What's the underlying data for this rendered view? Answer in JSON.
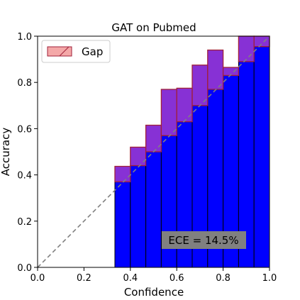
{
  "chart_data": {
    "type": "bar",
    "title": "GAT on Pubmed",
    "xlabel": "Confidence",
    "ylabel": "Accuracy",
    "xlim": [
      0.0,
      1.0
    ],
    "ylim": [
      0.0,
      1.0
    ],
    "xticks": [
      "0.0",
      "0.2",
      "0.4",
      "0.6",
      "0.8",
      "1.0"
    ],
    "yticks": [
      "0.0",
      "0.2",
      "0.4",
      "0.6",
      "0.8",
      "1.0"
    ],
    "bin_width": 0.0667,
    "bins": [
      {
        "x0": 0.3333,
        "accuracy": 0.37,
        "confidence": 0.437
      },
      {
        "x0": 0.4,
        "accuracy": 0.44,
        "confidence": 0.52
      },
      {
        "x0": 0.4667,
        "accuracy": 0.5,
        "confidence": 0.615
      },
      {
        "x0": 0.5333,
        "accuracy": 0.57,
        "confidence": 0.77
      },
      {
        "x0": 0.6,
        "accuracy": 0.63,
        "confidence": 0.775
      },
      {
        "x0": 0.6667,
        "accuracy": 0.7,
        "confidence": 0.875
      },
      {
        "x0": 0.7333,
        "accuracy": 0.77,
        "confidence": 0.94
      },
      {
        "x0": 0.8,
        "accuracy": 0.83,
        "confidence": 0.865
      },
      {
        "x0": 0.8667,
        "accuracy": 0.89,
        "confidence": 1.0
      },
      {
        "x0": 0.9333,
        "accuracy": 0.955,
        "confidence": 1.0
      }
    ],
    "legend": {
      "label": "Gap",
      "placement": "top-left"
    },
    "annotation": "ECE = 14.5%",
    "grid": false,
    "colors": {
      "bar": "#0000ff",
      "gap_fill": "#7a1bd0",
      "gap_edge": "#a0203a",
      "diagonal": "#808080",
      "legend_patch": "#f4a8a8",
      "annotation_bg": "#808080"
    }
  }
}
